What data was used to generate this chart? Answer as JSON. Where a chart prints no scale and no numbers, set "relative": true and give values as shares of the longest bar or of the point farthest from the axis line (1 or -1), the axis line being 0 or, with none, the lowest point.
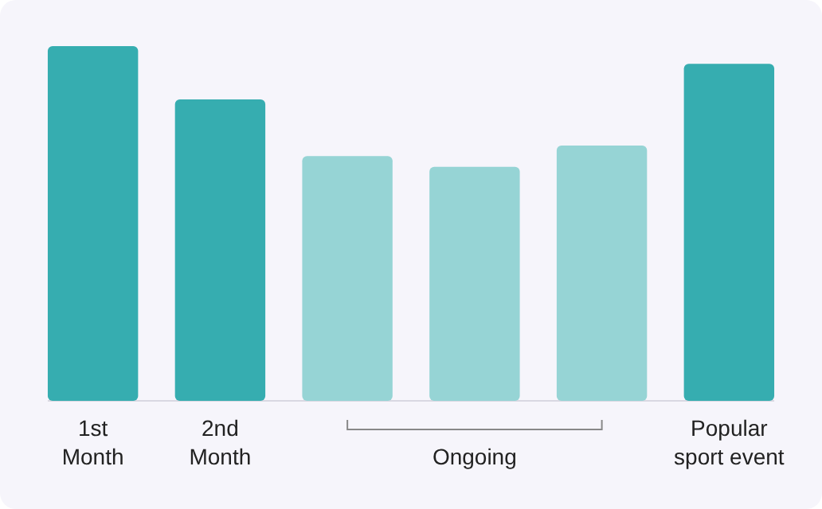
{
  "chart_data": {
    "type": "bar",
    "relative": true,
    "categories": [
      "1st Month",
      "2nd Month",
      null,
      null,
      null,
      "Popular sport event"
    ],
    "values": [
      1,
      0.85,
      0.69,
      0.66,
      0.72,
      0.95
    ],
    "colors": [
      "#36adb0",
      "#36adb0",
      "#96d4d5",
      "#96d4d5",
      "#96d4d5",
      "#36adb0"
    ],
    "annotations": [
      "Ongoing"
    ]
  }
}
